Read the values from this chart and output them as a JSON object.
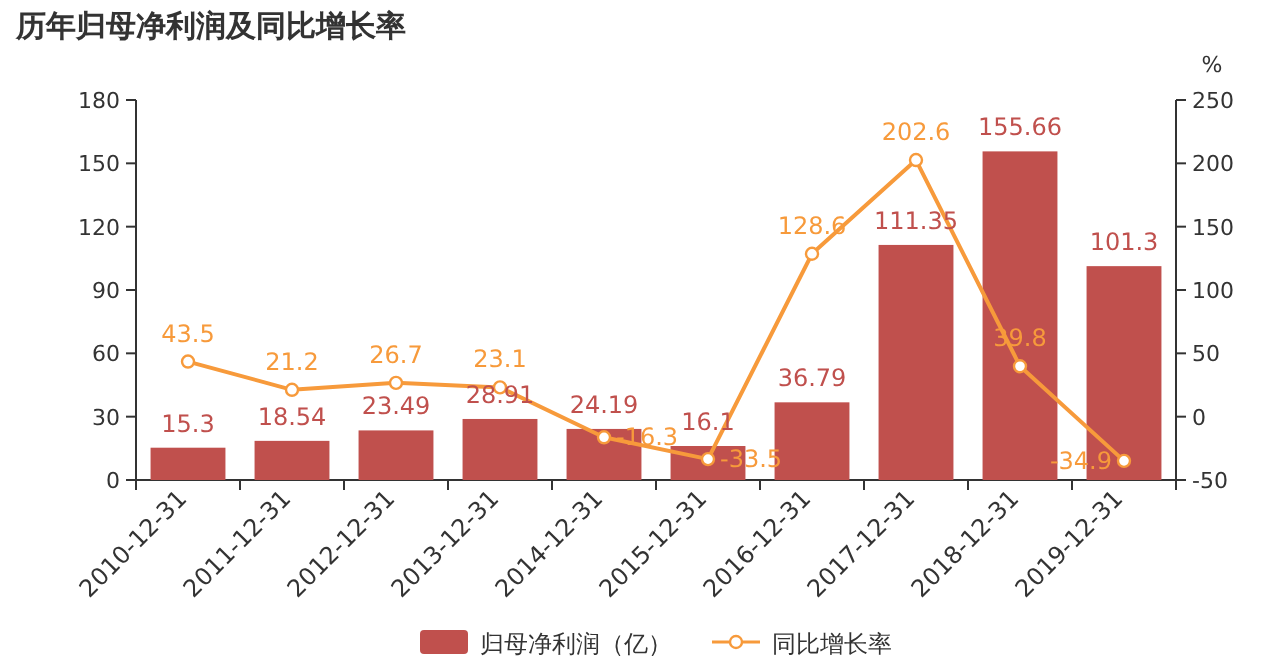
{
  "chart_data": {
    "type": "bar",
    "title": "历年归母净利润及同比增长率",
    "y2label": "%",
    "categories": [
      "2010-12-31",
      "2011-12-31",
      "2012-12-31",
      "2013-12-31",
      "2014-12-31",
      "2015-12-31",
      "2016-12-31",
      "2017-12-31",
      "2018-12-31",
      "2019-12-31"
    ],
    "series": [
      {
        "name": "归母净利润（亿）",
        "color": "#c0504d",
        "values": [
          15.3,
          18.54,
          23.49,
          28.91,
          24.19,
          16.1,
          36.79,
          111.35,
          155.66,
          101.3
        ]
      },
      {
        "name": "同比增长率",
        "type": "line",
        "axis": "y2",
        "color": "#f79a3b",
        "values": [
          43.5,
          21.2,
          26.7,
          23.1,
          -16.3,
          -33.5,
          128.6,
          202.6,
          39.8,
          -34.9
        ]
      }
    ],
    "ylim": [
      0,
      180
    ],
    "yticks": [
      0,
      30,
      60,
      90,
      120,
      150,
      180
    ],
    "y2lim": [
      -50,
      250
    ],
    "y2ticks": [
      -50,
      0,
      50,
      100,
      150,
      200,
      250
    ],
    "data_labels": true,
    "legend": "bottom",
    "marker": "circle",
    "grid": false
  }
}
